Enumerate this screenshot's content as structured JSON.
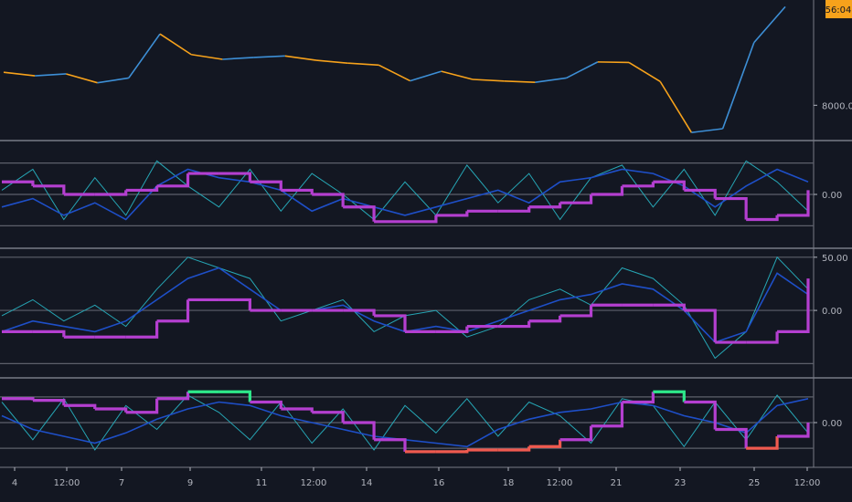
{
  "colors": {
    "background": "#131722",
    "separator": "#787b86",
    "gridline": "#5d606b",
    "axis_text": "#b2b5be",
    "price_up": "#3d8fd6",
    "price_down": "#f7a21b",
    "fast_line": "#26a6b5",
    "slow_line": "#1e4fc8",
    "signal_line": "#b43fd0",
    "signal_high": "#2ee88a",
    "signal_low": "#f05a4f",
    "badge_bg": "#f7a21b"
  },
  "price_badge": "56:04",
  "chart_data": [
    {
      "panel": "price",
      "type": "line",
      "x": [
        0,
        4,
        8,
        12,
        16,
        20,
        24,
        28,
        32,
        36,
        40,
        44,
        48,
        52,
        56,
        60,
        64,
        68,
        72,
        76,
        80,
        84,
        88,
        92,
        96,
        100
      ],
      "y": [
        8138,
        8123,
        8131,
        8094,
        8114,
        8298,
        8212,
        8192,
        8200,
        8206,
        8188,
        8176,
        8168,
        8102,
        8142,
        8108,
        8101,
        8096,
        8114,
        8181,
        8179,
        8099,
        7886,
        7902,
        8262,
        8412
      ],
      "y_ticks": [
        8000.0
      ],
      "y_tick_labels": [
        "8000.00"
      ]
    },
    {
      "panel": "oscillator_1",
      "type": "line",
      "y_ticks": [
        0
      ],
      "y_tick_labels": [
        "0.00"
      ],
      "ylim": [
        -1.2,
        1.2
      ],
      "levels": [
        0.75,
        0,
        -0.75
      ],
      "series": [
        {
          "role": "fast",
          "values": [
            0.1,
            0.6,
            -0.6,
            0.4,
            -0.5,
            0.8,
            0.2,
            -0.3,
            0.6,
            -0.4,
            0.5,
            0.0,
            -0.6,
            0.3,
            -0.5,
            0.7,
            -0.2,
            0.5,
            -0.6,
            0.4,
            0.7,
            -0.3,
            0.6,
            -0.5,
            0.8,
            0.3,
            -0.4
          ]
        },
        {
          "role": "slow",
          "values": [
            -0.3,
            -0.1,
            -0.5,
            -0.2,
            -0.6,
            0.2,
            0.6,
            0.4,
            0.3,
            0.1,
            -0.4,
            -0.1,
            -0.3,
            -0.5,
            -0.3,
            -0.1,
            0.1,
            -0.2,
            0.3,
            0.4,
            0.6,
            0.5,
            0.2,
            -0.3,
            0.2,
            0.6,
            0.3
          ]
        },
        {
          "role": "signal",
          "values": [
            0.3,
            0.2,
            0.0,
            0.0,
            0.1,
            0.2,
            0.5,
            0.5,
            0.3,
            0.1,
            0.0,
            -0.3,
            -0.65,
            -0.65,
            -0.5,
            -0.4,
            -0.4,
            -0.3,
            -0.2,
            0.0,
            0.2,
            0.3,
            0.1,
            -0.1,
            -0.6,
            -0.5,
            0.1
          ]
        }
      ]
    },
    {
      "panel": "oscillator_2",
      "type": "line",
      "y_ticks": [
        50,
        0
      ],
      "y_tick_labels": [
        "50.00",
        "0.00"
      ],
      "ylim": [
        -60,
        55
      ],
      "levels": [
        50,
        0,
        -50
      ],
      "series": [
        {
          "role": "fast",
          "values": [
            -5,
            10,
            -10,
            5,
            -15,
            20,
            50,
            40,
            30,
            -10,
            0,
            10,
            -20,
            -5,
            0,
            -25,
            -15,
            10,
            20,
            5,
            40,
            30,
            5,
            -45,
            -20,
            50,
            20
          ]
        },
        {
          "role": "slow",
          "values": [
            -20,
            -10,
            -15,
            -20,
            -10,
            10,
            30,
            40,
            20,
            0,
            0,
            5,
            -10,
            -20,
            -15,
            -20,
            -10,
            0,
            10,
            15,
            25,
            20,
            0,
            -30,
            -20,
            35,
            15
          ]
        },
        {
          "role": "signal",
          "values": [
            -20,
            -20,
            -25,
            -25,
            -25,
            -10,
            10,
            10,
            0,
            0,
            0,
            0,
            -5,
            -20,
            -20,
            -15,
            -15,
            -10,
            -5,
            5,
            5,
            5,
            0,
            -30,
            -30,
            -20,
            30
          ]
        }
      ]
    },
    {
      "panel": "oscillator_3",
      "type": "line",
      "y_ticks": [
        0
      ],
      "y_tick_labels": [
        "0.00"
      ],
      "ylim": [
        -1.2,
        1.2
      ],
      "levels": [
        0.75,
        0,
        -0.75
      ],
      "series": [
        {
          "role": "fast",
          "values": [
            0.6,
            -0.5,
            0.7,
            -0.8,
            0.5,
            -0.2,
            0.8,
            0.3,
            -0.5,
            0.6,
            -0.6,
            0.4,
            -0.8,
            0.5,
            -0.3,
            0.7,
            -0.4,
            0.6,
            0.2,
            -0.6,
            0.7,
            0.5,
            -0.7,
            0.6,
            -0.5,
            0.8,
            -0.3
          ]
        },
        {
          "role": "slow",
          "values": [
            0.2,
            -0.2,
            -0.4,
            -0.6,
            -0.3,
            0.1,
            0.4,
            0.6,
            0.5,
            0.2,
            0.0,
            -0.2,
            -0.4,
            -0.5,
            -0.6,
            -0.7,
            -0.2,
            0.1,
            0.3,
            0.4,
            0.6,
            0.5,
            0.2,
            0.0,
            -0.3,
            0.5,
            0.7
          ]
        },
        {
          "role": "signal",
          "values": [
            0.7,
            0.65,
            0.5,
            0.4,
            0.3,
            0.7,
            0.9,
            0.9,
            0.6,
            0.4,
            0.3,
            0.0,
            -0.5,
            -0.85,
            -0.85,
            -0.8,
            -0.8,
            -0.7,
            -0.5,
            -0.1,
            0.6,
            0.9,
            0.6,
            -0.2,
            -0.75,
            -0.4,
            0.0
          ]
        }
      ]
    }
  ],
  "x_axis": {
    "ticks": [
      "4",
      "12:00",
      "7",
      "9",
      "11",
      "12:00",
      "14",
      "16",
      "18",
      "12:00",
      "21",
      "23",
      "25",
      "12:00"
    ]
  }
}
